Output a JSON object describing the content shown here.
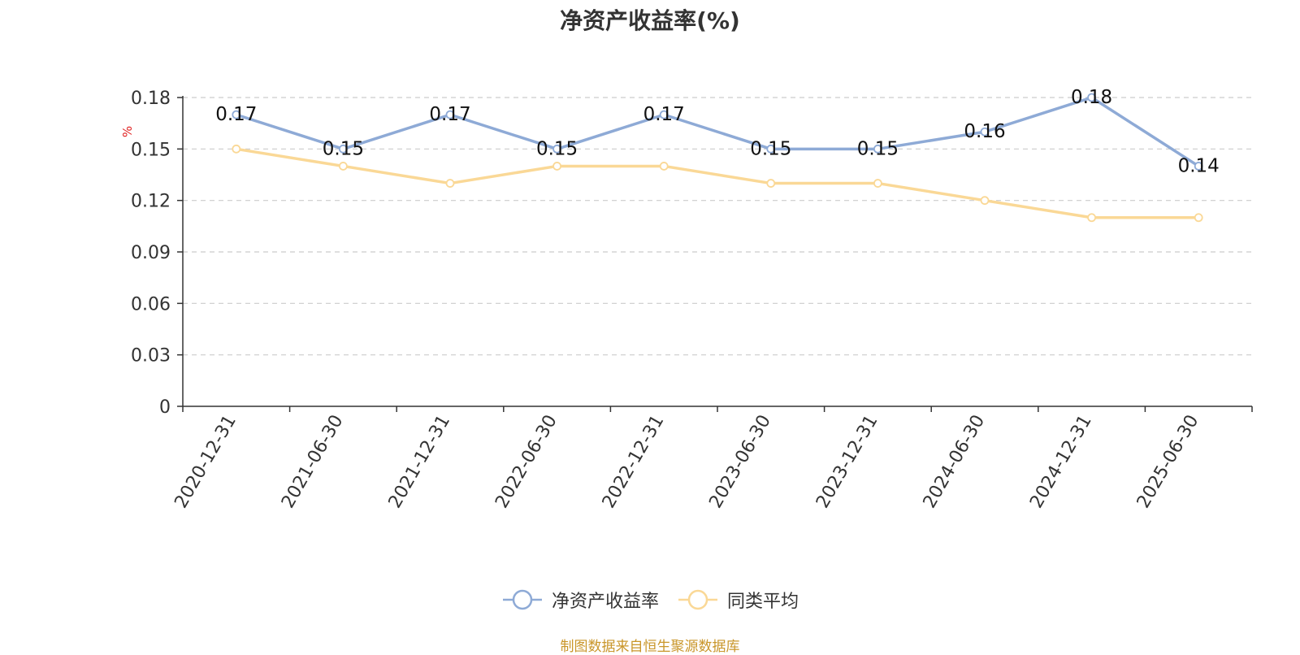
{
  "chart_data": {
    "type": "line",
    "title": "净资产收益率(%)",
    "ylabel": "%",
    "categories": [
      "2020-12-31",
      "2021-06-30",
      "2021-12-31",
      "2022-06-30",
      "2022-12-31",
      "2023-06-30",
      "2023-12-31",
      "2024-06-30",
      "2024-12-31",
      "2025-06-30"
    ],
    "ylim": [
      0,
      0.18
    ],
    "yticks": [
      "0",
      "0.03",
      "0.06",
      "0.09",
      "0.12",
      "0.15",
      "0.18"
    ],
    "grid": true,
    "legend_position": "bottom",
    "series": [
      {
        "name": "净资产收益率",
        "color": "#8eaad6",
        "show_labels": true,
        "values": [
          0.17,
          0.15,
          0.17,
          0.15,
          0.17,
          0.15,
          0.15,
          0.16,
          0.18,
          0.14
        ]
      },
      {
        "name": "同类平均",
        "color": "#fad896",
        "show_labels": false,
        "values": [
          0.15,
          0.14,
          0.13,
          0.14,
          0.14,
          0.13,
          0.13,
          0.12,
          0.11,
          0.11
        ]
      }
    ]
  },
  "source": "制图数据来自恒生聚源数据库",
  "colors": {
    "ylabel_unit": "#e02020",
    "source_text": "#c9962a"
  }
}
